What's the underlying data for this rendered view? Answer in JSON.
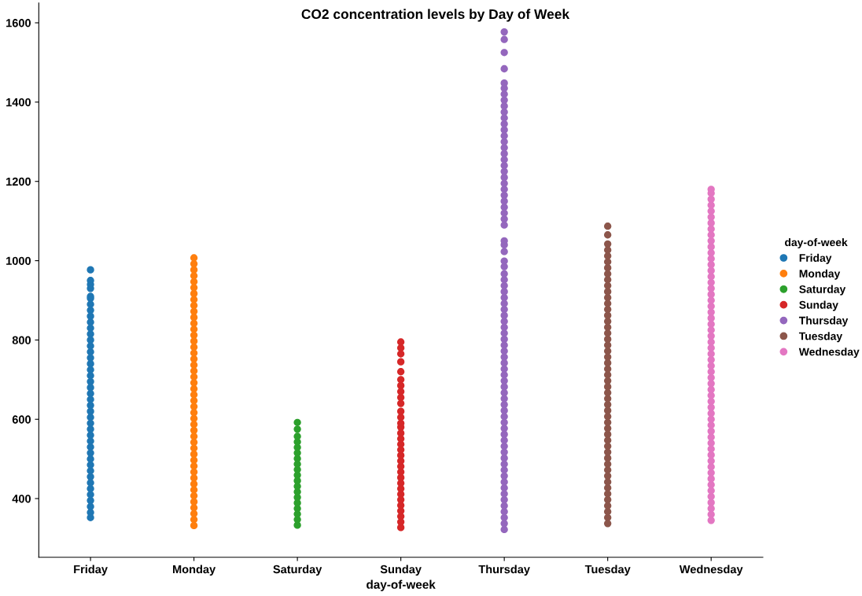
{
  "chart_data": {
    "type": "scatter",
    "title": "CO2 concentration levels by Day of Week",
    "xlabel": "day-of-week",
    "legend_title": "day-of-week",
    "legend": "right",
    "marker": "circle",
    "grid": false,
    "categories": [
      "Friday",
      "Monday",
      "Saturday",
      "Sunday",
      "Thursday",
      "Tuesday",
      "Wednesday"
    ],
    "ylim": [
      252,
      1650
    ],
    "yticks": [
      400,
      600,
      800,
      1000,
      1200,
      1400,
      1600
    ],
    "series": [
      {
        "name": "Friday",
        "color": "#1f77b4",
        "x": [
          "Friday",
          "Friday",
          "Friday",
          "Friday",
          "Friday",
          "Friday",
          "Friday",
          "Friday",
          "Friday",
          "Friday",
          "Friday",
          "Friday",
          "Friday",
          "Friday",
          "Friday",
          "Friday",
          "Friday",
          "Friday",
          "Friday",
          "Friday",
          "Friday",
          "Friday",
          "Friday",
          "Friday",
          "Friday",
          "Friday",
          "Friday",
          "Friday",
          "Friday",
          "Friday",
          "Friday",
          "Friday",
          "Friday",
          "Friday",
          "Friday",
          "Friday",
          "Friday",
          "Friday",
          "Friday",
          "Friday",
          "Friday",
          "Friday",
          "Friday"
        ],
        "values": [
          352,
          365,
          380,
          395,
          410,
          425,
          440,
          455,
          470,
          485,
          500,
          515,
          530,
          545,
          560,
          575,
          590,
          605,
          620,
          635,
          650,
          665,
          680,
          695,
          710,
          725,
          740,
          755,
          770,
          785,
          800,
          815,
          830,
          845,
          860,
          875,
          890,
          905,
          910,
          930,
          940,
          950,
          977
        ]
      },
      {
        "name": "Monday",
        "color": "#ff7f0e",
        "x": [
          "Monday",
          "Monday",
          "Monday",
          "Monday",
          "Monday",
          "Monday",
          "Monday",
          "Monday",
          "Monday",
          "Monday",
          "Monday",
          "Monday",
          "Monday",
          "Monday",
          "Monday",
          "Monday",
          "Monday",
          "Monday",
          "Monday",
          "Monday",
          "Monday",
          "Monday",
          "Monday",
          "Monday",
          "Monday",
          "Monday",
          "Monday",
          "Monday",
          "Monday",
          "Monday",
          "Monday",
          "Monday",
          "Monday",
          "Monday",
          "Monday",
          "Monday",
          "Monday",
          "Monday",
          "Monday",
          "Monday",
          "Monday",
          "Monday",
          "Monday",
          "Monday",
          "Monday",
          "Monday"
        ],
        "values": [
          332,
          347,
          362,
          377,
          392,
          407,
          422,
          437,
          452,
          467,
          482,
          497,
          512,
          527,
          542,
          557,
          572,
          587,
          602,
          617,
          632,
          647,
          662,
          677,
          692,
          707,
          722,
          737,
          752,
          767,
          782,
          797,
          812,
          827,
          842,
          857,
          872,
          887,
          902,
          917,
          932,
          947,
          962,
          977,
          992,
          1007
        ]
      },
      {
        "name": "Saturday",
        "color": "#2ca02c",
        "x": [
          "Saturday",
          "Saturday",
          "Saturday",
          "Saturday",
          "Saturday",
          "Saturday",
          "Saturday",
          "Saturday",
          "Saturday",
          "Saturday",
          "Saturday",
          "Saturday",
          "Saturday",
          "Saturday",
          "Saturday",
          "Saturday",
          "Saturday",
          "Saturday",
          "Saturday"
        ],
        "values": [
          333,
          347,
          361,
          375,
          389,
          403,
          417,
          431,
          445,
          459,
          473,
          487,
          501,
          515,
          529,
          543,
          557,
          575,
          592
        ]
      },
      {
        "name": "Sunday",
        "color": "#d62728",
        "x": [
          "Sunday",
          "Sunday",
          "Sunday",
          "Sunday",
          "Sunday",
          "Sunday",
          "Sunday",
          "Sunday",
          "Sunday",
          "Sunday",
          "Sunday",
          "Sunday",
          "Sunday",
          "Sunday",
          "Sunday",
          "Sunday",
          "Sunday",
          "Sunday",
          "Sunday",
          "Sunday",
          "Sunday",
          "Sunday",
          "Sunday",
          "Sunday",
          "Sunday",
          "Sunday",
          "Sunday",
          "Sunday",
          "Sunday",
          "Sunday",
          "Sunday",
          "Sunday"
        ],
        "values": [
          327,
          341,
          355,
          369,
          383,
          397,
          411,
          425,
          439,
          453,
          467,
          481,
          495,
          509,
          523,
          537,
          551,
          565,
          580,
          590,
          605,
          620,
          640,
          655,
          670,
          685,
          700,
          720,
          745,
          765,
          780,
          795
        ]
      },
      {
        "name": "Thursday",
        "color": "#9467bd",
        "x": [
          "Thursday",
          "Thursday",
          "Thursday",
          "Thursday",
          "Thursday",
          "Thursday",
          "Thursday",
          "Thursday",
          "Thursday",
          "Thursday",
          "Thursday",
          "Thursday",
          "Thursday",
          "Thursday",
          "Thursday",
          "Thursday",
          "Thursday",
          "Thursday",
          "Thursday",
          "Thursday",
          "Thursday",
          "Thursday",
          "Thursday",
          "Thursday",
          "Thursday",
          "Thursday",
          "Thursday",
          "Thursday",
          "Thursday",
          "Thursday",
          "Thursday",
          "Thursday",
          "Thursday",
          "Thursday",
          "Thursday",
          "Thursday",
          "Thursday",
          "Thursday",
          "Thursday",
          "Thursday",
          "Thursday",
          "Thursday",
          "Thursday",
          "Thursday",
          "Thursday",
          "Thursday",
          "Thursday",
          "Thursday",
          "Thursday",
          "Thursday",
          "Thursday",
          "Thursday",
          "Thursday",
          "Thursday",
          "Thursday",
          "Thursday",
          "Thursday",
          "Thursday",
          "Thursday",
          "Thursday",
          "Thursday",
          "Thursday",
          "Thursday",
          "Thursday",
          "Thursday",
          "Thursday",
          "Thursday",
          "Thursday",
          "Thursday",
          "Thursday",
          "Thursday",
          "Thursday",
          "Thursday",
          "Thursday",
          "Thursday",
          "Thursday",
          "Thursday",
          "Thursday"
        ],
        "values": [
          322,
          337,
          352,
          367,
          382,
          397,
          412,
          427,
          442,
          457,
          472,
          487,
          502,
          517,
          532,
          547,
          562,
          577,
          592,
          607,
          622,
          637,
          652,
          667,
          682,
          697,
          712,
          727,
          742,
          757,
          772,
          787,
          802,
          817,
          832,
          847,
          862,
          877,
          892,
          907,
          922,
          937,
          952,
          967,
          985,
          999,
          1023,
          1040,
          1050,
          1090,
          1105,
          1120,
          1135,
          1150,
          1165,
          1180,
          1195,
          1210,
          1225,
          1240,
          1255,
          1270,
          1285,
          1300,
          1315,
          1330,
          1345,
          1360,
          1375,
          1390,
          1405,
          1420,
          1435,
          1448,
          1484,
          1525,
          1558,
          1577
        ]
      },
      {
        "name": "Tuesday",
        "color": "#8c564b",
        "x": [
          "Tuesday",
          "Tuesday",
          "Tuesday",
          "Tuesday",
          "Tuesday",
          "Tuesday",
          "Tuesday",
          "Tuesday",
          "Tuesday",
          "Tuesday",
          "Tuesday",
          "Tuesday",
          "Tuesday",
          "Tuesday",
          "Tuesday",
          "Tuesday",
          "Tuesday",
          "Tuesday",
          "Tuesday",
          "Tuesday",
          "Tuesday",
          "Tuesday",
          "Tuesday",
          "Tuesday",
          "Tuesday",
          "Tuesday",
          "Tuesday",
          "Tuesday",
          "Tuesday",
          "Tuesday",
          "Tuesday",
          "Tuesday",
          "Tuesday",
          "Tuesday",
          "Tuesday",
          "Tuesday",
          "Tuesday",
          "Tuesday",
          "Tuesday",
          "Tuesday",
          "Tuesday",
          "Tuesday",
          "Tuesday",
          "Tuesday",
          "Tuesday",
          "Tuesday",
          "Tuesday",
          "Tuesday",
          "Tuesday",
          "Tuesday"
        ],
        "values": [
          337,
          352,
          367,
          382,
          397,
          412,
          427,
          442,
          457,
          472,
          487,
          502,
          517,
          532,
          547,
          562,
          577,
          592,
          607,
          622,
          637,
          652,
          667,
          682,
          697,
          712,
          727,
          742,
          757,
          772,
          787,
          802,
          817,
          832,
          847,
          862,
          877,
          892,
          907,
          922,
          937,
          952,
          967,
          982,
          997,
          1012,
          1027,
          1042,
          1065,
          1087
        ]
      },
      {
        "name": "Wednesday",
        "color": "#e377c2",
        "x": [
          "Wednesday",
          "Wednesday",
          "Wednesday",
          "Wednesday",
          "Wednesday",
          "Wednesday",
          "Wednesday",
          "Wednesday",
          "Wednesday",
          "Wednesday",
          "Wednesday",
          "Wednesday",
          "Wednesday",
          "Wednesday",
          "Wednesday",
          "Wednesday",
          "Wednesday",
          "Wednesday",
          "Wednesday",
          "Wednesday",
          "Wednesday",
          "Wednesday",
          "Wednesday",
          "Wednesday",
          "Wednesday",
          "Wednesday",
          "Wednesday",
          "Wednesday",
          "Wednesday",
          "Wednesday",
          "Wednesday",
          "Wednesday",
          "Wednesday",
          "Wednesday",
          "Wednesday",
          "Wednesday",
          "Wednesday",
          "Wednesday",
          "Wednesday",
          "Wednesday",
          "Wednesday",
          "Wednesday",
          "Wednesday",
          "Wednesday",
          "Wednesday",
          "Wednesday",
          "Wednesday",
          "Wednesday",
          "Wednesday",
          "Wednesday",
          "Wednesday",
          "Wednesday",
          "Wednesday",
          "Wednesday",
          "Wednesday",
          "Wednesday",
          "Wednesday"
        ],
        "values": [
          345,
          360,
          375,
          390,
          405,
          420,
          435,
          450,
          465,
          480,
          495,
          510,
          525,
          540,
          555,
          570,
          585,
          600,
          615,
          630,
          645,
          660,
          675,
          690,
          705,
          720,
          735,
          750,
          765,
          780,
          795,
          810,
          825,
          840,
          855,
          870,
          885,
          900,
          915,
          930,
          945,
          960,
          975,
          990,
          1005,
          1020,
          1035,
          1050,
          1065,
          1080,
          1095,
          1110,
          1125,
          1140,
          1155,
          1170,
          1180
        ]
      }
    ]
  }
}
